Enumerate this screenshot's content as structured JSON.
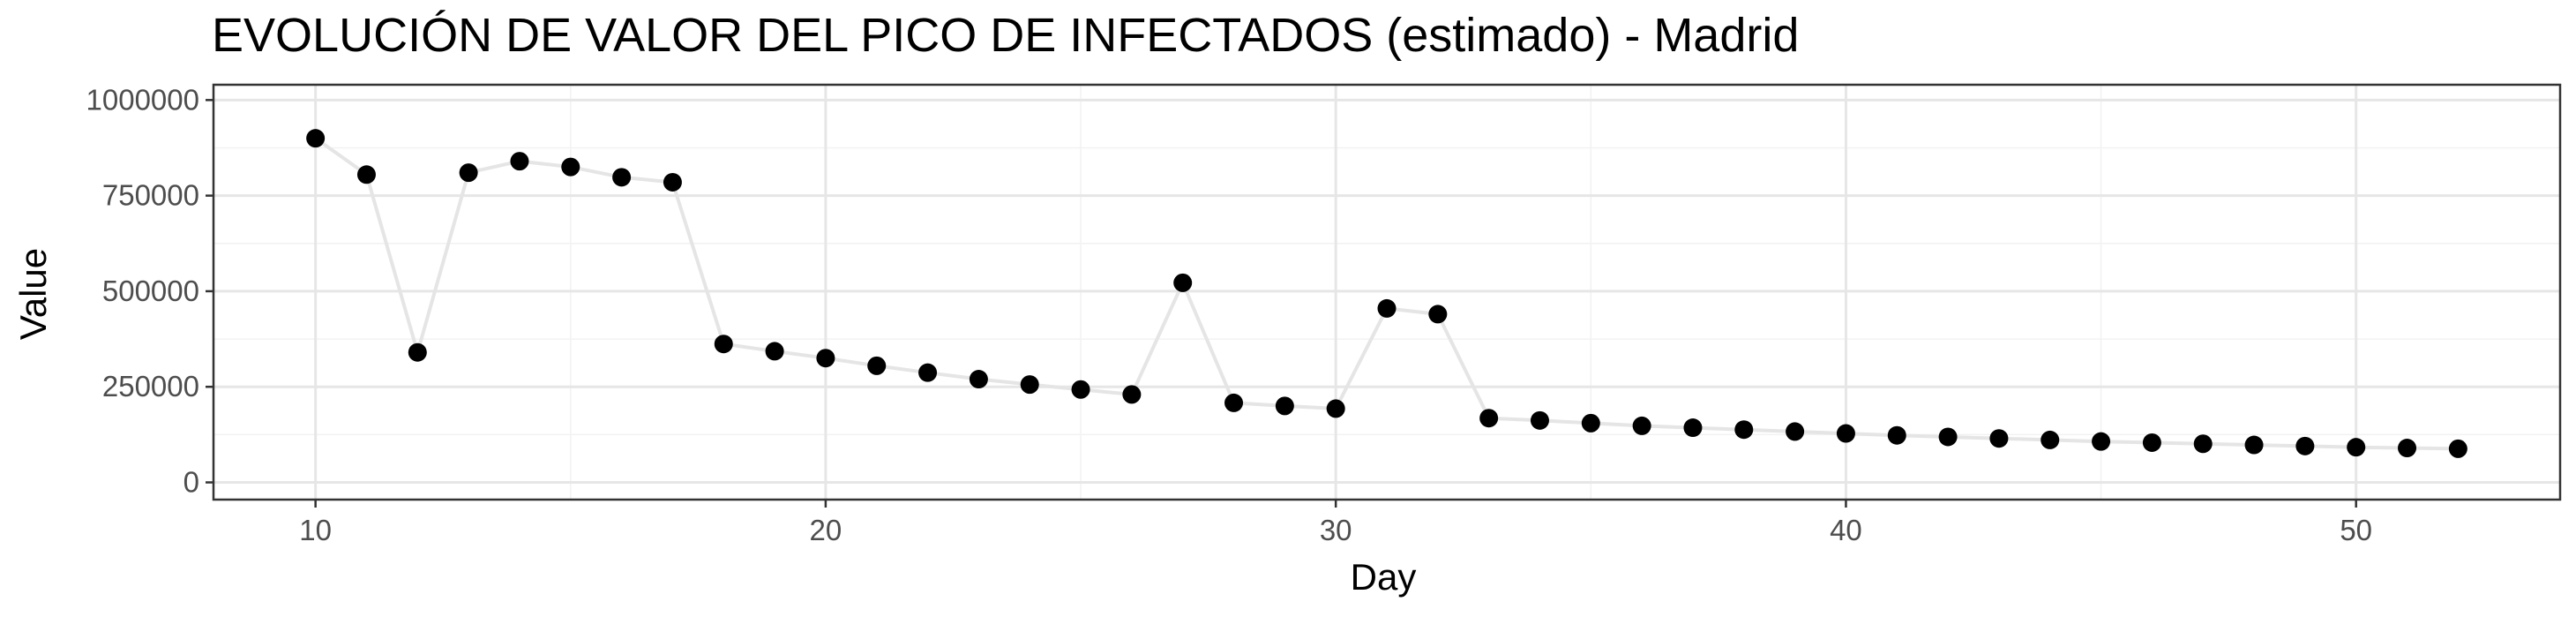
{
  "chart_data": {
    "type": "line",
    "title": "EVOLUCIÓN DE VALOR DEL PICO DE INFECTADOS (estimado) - Madrid",
    "xlabel": "Day",
    "ylabel": "Value",
    "xlim": [
      8,
      54
    ],
    "ylim": [
      -45000,
      1040000
    ],
    "x_ticks": [
      10,
      20,
      30,
      40,
      50
    ],
    "x_tick_labels": [
      "10",
      "20",
      "30",
      "40",
      "50"
    ],
    "y_ticks": [
      0,
      250000,
      500000,
      750000,
      1000000
    ],
    "y_tick_labels": [
      "0",
      "250000",
      "500000",
      "750000",
      "1000000"
    ],
    "grid": true,
    "colors": {
      "line": "#e5e5e5",
      "point": "#000000",
      "grid_major": "#e6e6e6",
      "grid_minor": "#f2f2f2",
      "panel_border": "#333333"
    },
    "series": [
      {
        "x": [
          10,
          11,
          12,
          13,
          14,
          15,
          16,
          17,
          18,
          19,
          20,
          21,
          22,
          23,
          24,
          25,
          26,
          27,
          28,
          29,
          30,
          31,
          32,
          33,
          34,
          35,
          36,
          37,
          38,
          39,
          40,
          41,
          42,
          43,
          44,
          45,
          46,
          47,
          48,
          49,
          50,
          51,
          52
        ],
        "y": [
          900000,
          805000,
          340000,
          810000,
          840000,
          825000,
          798000,
          785000,
          362000,
          343000,
          325000,
          305000,
          287000,
          270000,
          256000,
          243000,
          230000,
          522000,
          208000,
          200000,
          193000,
          455000,
          440000,
          168000,
          162000,
          155000,
          148000,
          143000,
          138000,
          133000,
          128000,
          123000,
          119000,
          115000,
          111000,
          107000,
          104000,
          101000,
          98000,
          95000,
          92000,
          90000,
          88000
        ]
      }
    ]
  }
}
